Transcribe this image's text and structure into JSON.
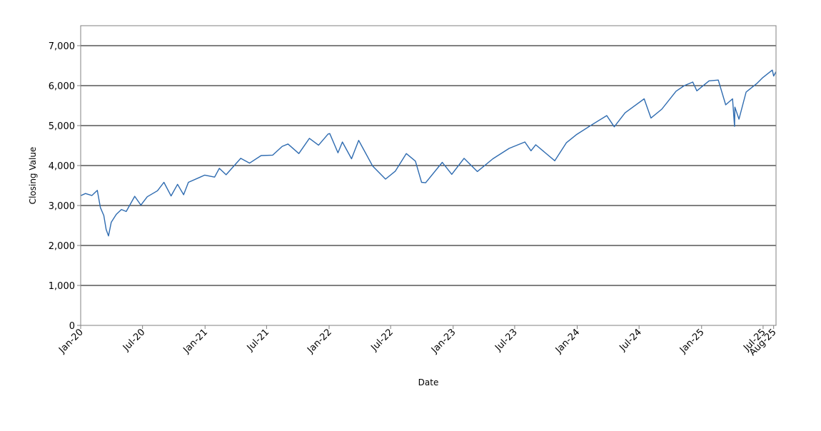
{
  "chart_data": {
    "type": "line",
    "title": "",
    "xlabel": "Date",
    "ylabel": "Closing Value",
    "ylim": [
      0,
      7500
    ],
    "yticks": [
      0,
      1000,
      2000,
      3000,
      4000,
      5000,
      6000,
      7000
    ],
    "ytick_labels": [
      "0",
      "1,000",
      "2,000",
      "3,000",
      "4,000",
      "5,000",
      "6,000",
      "7,000"
    ],
    "xlim": [
      "2020-01-01",
      "2025-08-08"
    ],
    "xticks": [
      {
        "date": "2020-01-01",
        "label": "Jan-20"
      },
      {
        "date": "2020-07-01",
        "label": "Jul-20"
      },
      {
        "date": "2021-01-01",
        "label": "Jan-21"
      },
      {
        "date": "2021-07-01",
        "label": "Jul-21"
      },
      {
        "date": "2022-01-01",
        "label": "Jan-22"
      },
      {
        "date": "2022-07-01",
        "label": "Jul-22"
      },
      {
        "date": "2023-01-01",
        "label": "Jan-23"
      },
      {
        "date": "2023-07-01",
        "label": "Jul-23"
      },
      {
        "date": "2024-01-01",
        "label": "Jan-24"
      },
      {
        "date": "2024-07-01",
        "label": "Jul-24"
      },
      {
        "date": "2025-01-01",
        "label": "Jan-25"
      },
      {
        "date": "2025-07-01",
        "label": "Jul-25"
      },
      {
        "date": "2025-08-01",
        "label": "Aug-25"
      }
    ],
    "grid": "horizontal",
    "legend": "none",
    "series": [
      {
        "color": "#2e6bb0",
        "points": [
          [
            "2020-01-02",
            3250
          ],
          [
            "2020-01-15",
            3300
          ],
          [
            "2020-02-03",
            3250
          ],
          [
            "2020-02-19",
            3380
          ],
          [
            "2020-02-28",
            2950
          ],
          [
            "2020-03-09",
            2750
          ],
          [
            "2020-03-16",
            2400
          ],
          [
            "2020-03-23",
            2240
          ],
          [
            "2020-03-31",
            2580
          ],
          [
            "2020-04-15",
            2780
          ],
          [
            "2020-04-30",
            2900
          ],
          [
            "2020-05-14",
            2850
          ],
          [
            "2020-06-08",
            3230
          ],
          [
            "2020-06-26",
            3010
          ],
          [
            "2020-07-15",
            3220
          ],
          [
            "2020-08-14",
            3370
          ],
          [
            "2020-09-02",
            3580
          ],
          [
            "2020-09-23",
            3240
          ],
          [
            "2020-10-12",
            3530
          ],
          [
            "2020-10-30",
            3270
          ],
          [
            "2020-11-13",
            3580
          ],
          [
            "2020-12-15",
            3700
          ],
          [
            "2020-12-31",
            3760
          ],
          [
            "2021-01-29",
            3710
          ],
          [
            "2021-02-12",
            3930
          ],
          [
            "2021-03-04",
            3770
          ],
          [
            "2021-04-16",
            4180
          ],
          [
            "2021-05-12",
            4060
          ],
          [
            "2021-06-15",
            4250
          ],
          [
            "2021-07-19",
            4260
          ],
          [
            "2021-08-16",
            4480
          ],
          [
            "2021-09-02",
            4540
          ],
          [
            "2021-10-04",
            4300
          ],
          [
            "2021-11-04",
            4680
          ],
          [
            "2021-12-01",
            4510
          ],
          [
            "2021-12-29",
            4790
          ],
          [
            "2022-01-03",
            4800
          ],
          [
            "2022-01-27",
            4320
          ],
          [
            "2022-02-09",
            4590
          ],
          [
            "2022-03-08",
            4170
          ],
          [
            "2022-03-29",
            4630
          ],
          [
            "2022-05-09",
            3990
          ],
          [
            "2022-06-16",
            3660
          ],
          [
            "2022-07-15",
            3860
          ],
          [
            "2022-08-16",
            4300
          ],
          [
            "2022-09-12",
            4110
          ],
          [
            "2022-09-30",
            3580
          ],
          [
            "2022-10-12",
            3570
          ],
          [
            "2022-11-30",
            4080
          ],
          [
            "2022-12-28",
            3780
          ],
          [
            "2023-02-02",
            4180
          ],
          [
            "2023-03-13",
            3850
          ],
          [
            "2023-04-28",
            4170
          ],
          [
            "2023-06-15",
            4430
          ],
          [
            "2023-07-31",
            4590
          ],
          [
            "2023-08-18",
            4370
          ],
          [
            "2023-09-01",
            4520
          ],
          [
            "2023-10-27",
            4120
          ],
          [
            "2023-11-30",
            4570
          ],
          [
            "2023-12-29",
            4770
          ],
          [
            "2024-02-15",
            5030
          ],
          [
            "2024-03-28",
            5250
          ],
          [
            "2024-04-19",
            4970
          ],
          [
            "2024-05-21",
            5320
          ],
          [
            "2024-07-16",
            5670
          ],
          [
            "2024-08-05",
            5190
          ],
          [
            "2024-09-06",
            5410
          ],
          [
            "2024-10-18",
            5860
          ],
          [
            "2024-11-11",
            6000
          ],
          [
            "2024-12-06",
            6090
          ],
          [
            "2024-12-18",
            5870
          ],
          [
            "2025-01-23",
            6120
          ],
          [
            "2025-02-19",
            6140
          ],
          [
            "2025-03-13",
            5520
          ],
          [
            "2025-04-02",
            5670
          ],
          [
            "2025-04-08",
            4980
          ],
          [
            "2025-04-09",
            5460
          ],
          [
            "2025-04-21",
            5160
          ],
          [
            "2025-05-12",
            5840
          ],
          [
            "2025-06-12",
            6050
          ],
          [
            "2025-06-30",
            6200
          ],
          [
            "2025-07-28",
            6390
          ],
          [
            "2025-08-01",
            6240
          ],
          [
            "2025-08-08",
            6350
          ]
        ]
      }
    ]
  }
}
